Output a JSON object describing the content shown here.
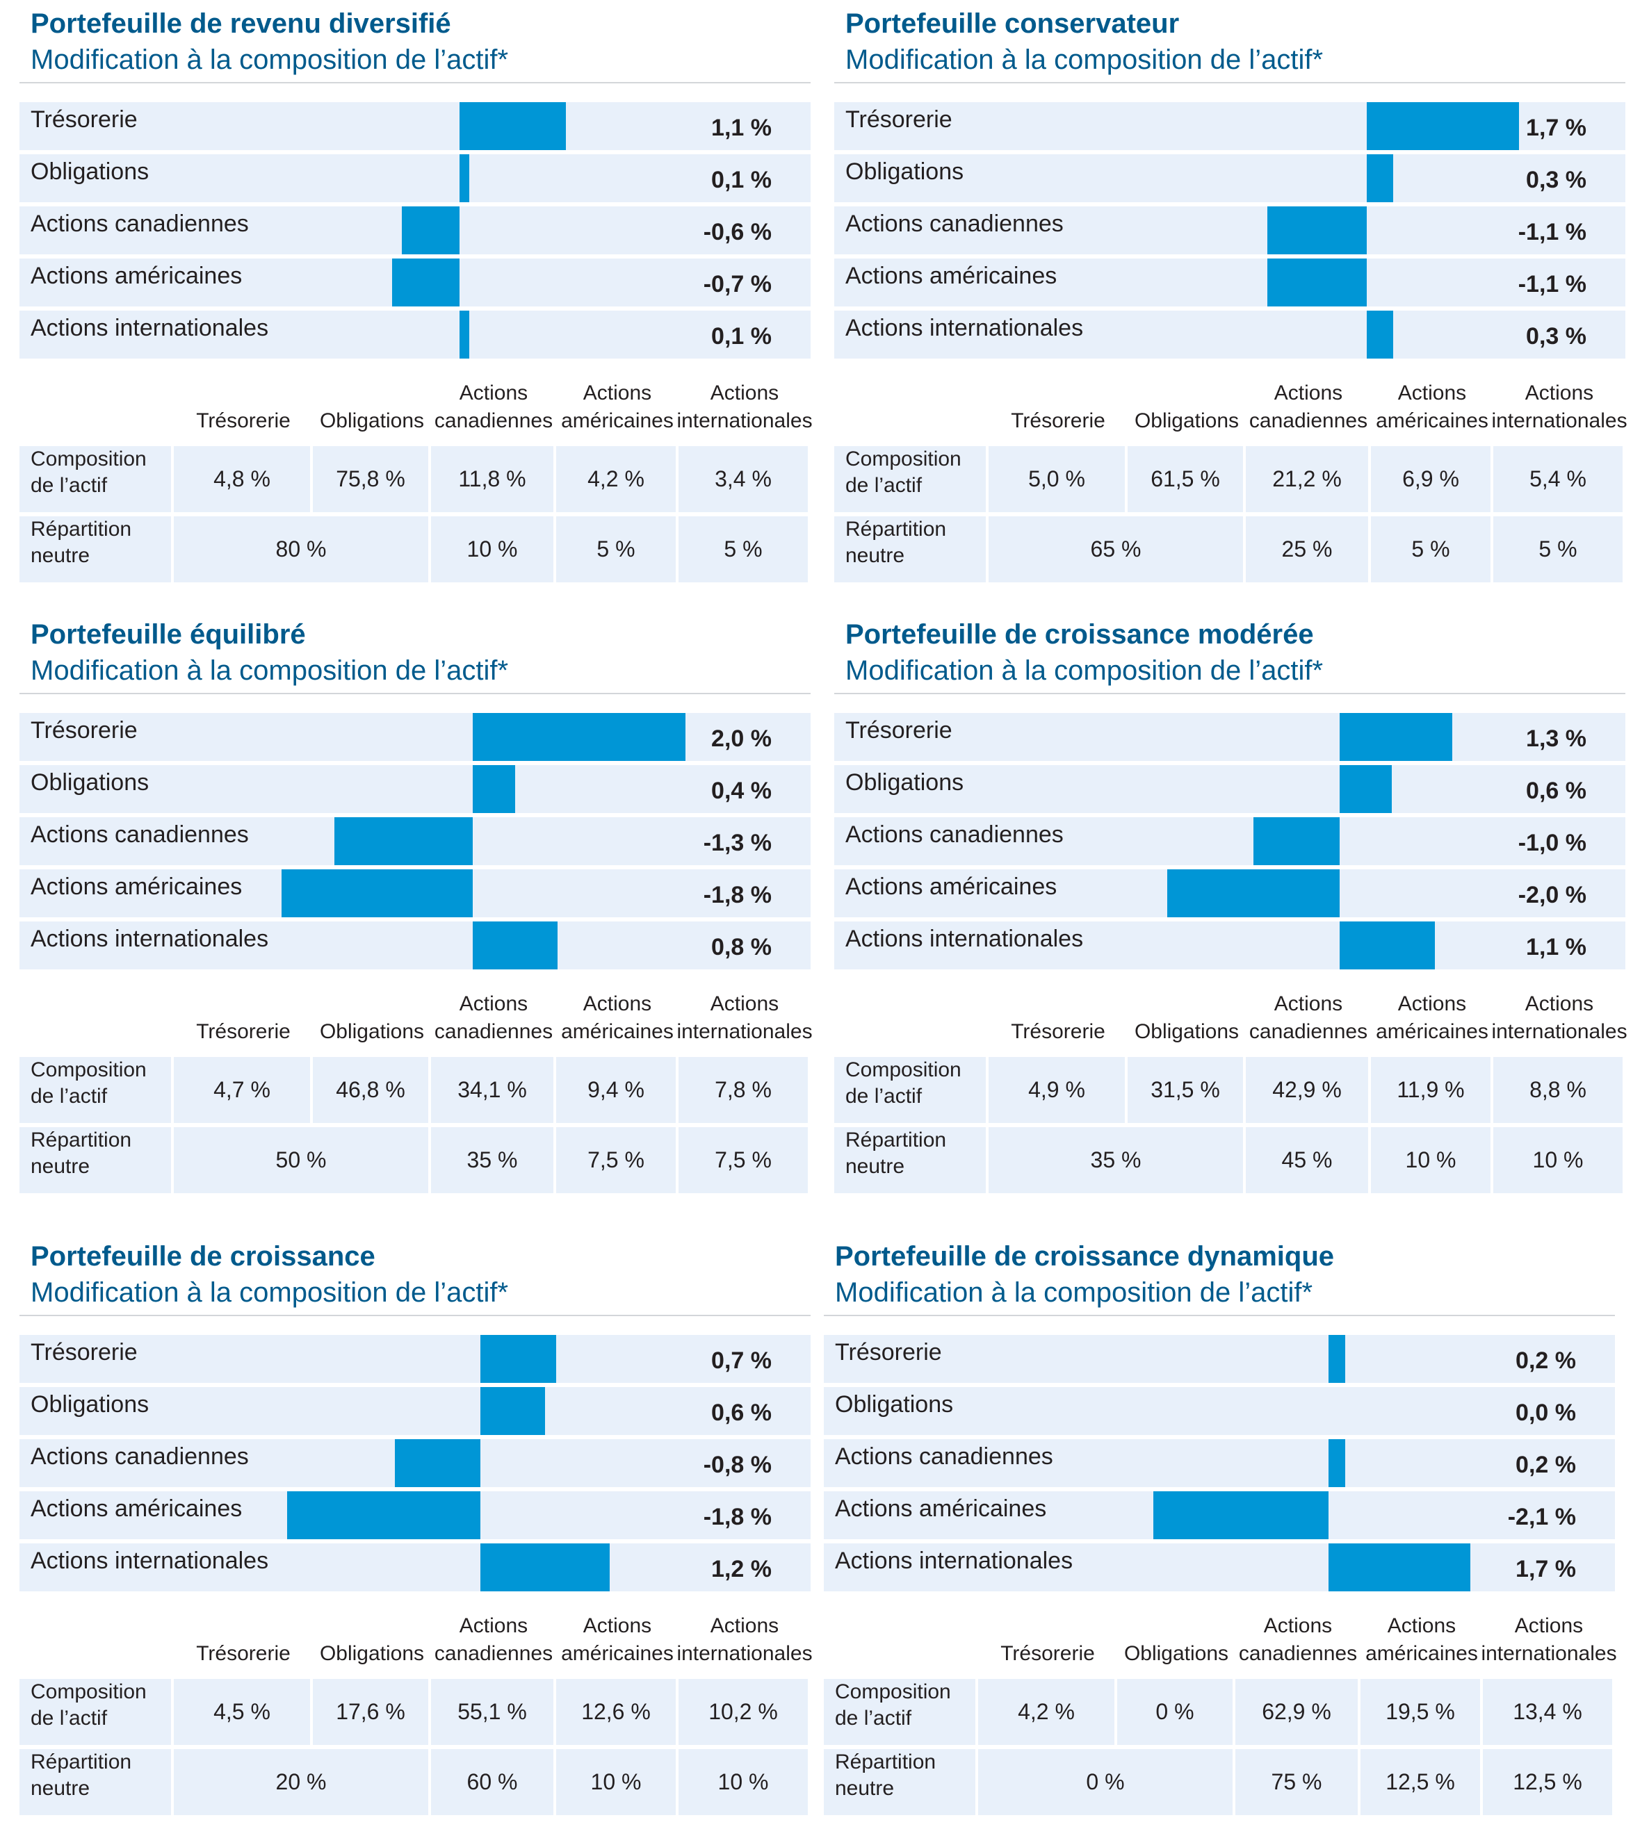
{
  "colors": {
    "title": "#005a8c",
    "bar": "#0096d6",
    "row_bg": "#e8f0fa",
    "rule": "#d3d6d9"
  },
  "value_suffix": " %",
  "table_header": [
    "Trésorerie",
    "Obligations",
    "Actions canadiennes",
    "Actions américaines",
    "Actions internationales"
  ],
  "table_header_lines": [
    [
      "Trésorerie"
    ],
    [
      "Obligations"
    ],
    [
      "Actions",
      "canadiennes"
    ],
    [
      "Actions",
      "américaines"
    ],
    [
      "Actions",
      "internationales"
    ]
  ],
  "row_labels": {
    "composition": [
      "Composition",
      "de l’actif"
    ],
    "neutral": [
      "Répartition",
      "neutre"
    ]
  },
  "chart_data": [
    {
      "type": "bar",
      "orientation": "horizontal",
      "title": "Portefeuille de revenu diversifié",
      "subtitle": "Modification à la composition de l’actif*",
      "categories": [
        "Trésorerie",
        "Obligations",
        "Actions canadiennes",
        "Actions américaines",
        "Actions internationales"
      ],
      "values": [
        1.1,
        0.1,
        -0.6,
        -0.7,
        0.1
      ],
      "value_labels": [
        "1,1 %",
        "0,1 %",
        "-0,6 %",
        "-0,7 %",
        "0,1 %"
      ],
      "bar_scale": [
        -2.4,
        3.0
      ],
      "composition": [
        "4,8 %",
        "75,8 %",
        "11,8 %",
        "4,2 %",
        "3,4 %"
      ],
      "neutral": [
        {
          "value": "80 %",
          "span": 2
        },
        {
          "value": "10 %",
          "span": 1
        },
        {
          "value": "5 %",
          "span": 1
        },
        {
          "value": "5 %",
          "span": 1
        }
      ]
    },
    {
      "type": "bar",
      "orientation": "horizontal",
      "title": "Portefeuille conservateur",
      "subtitle": "Modification à la composition de l’actif*",
      "categories": [
        "Trésorerie",
        "Obligations",
        "Actions canadiennes",
        "Actions américaines",
        "Actions internationales"
      ],
      "values": [
        1.7,
        0.3,
        -1.1,
        -1.1,
        0.3
      ],
      "value_labels": [
        "1,7 %",
        "0,3 %",
        "-1,1 %",
        "-1,1 %",
        "0,3 %"
      ],
      "bar_scale": [
        -3.6,
        2.2
      ],
      "composition": [
        "5,0 %",
        "61,5 %",
        "21,2 %",
        "6,9 %",
        "5,4 %"
      ],
      "neutral": [
        {
          "value": "65 %",
          "span": 2
        },
        {
          "value": "25 %",
          "span": 1
        },
        {
          "value": "5 %",
          "span": 1
        },
        {
          "value": "5 %",
          "span": 1
        }
      ]
    },
    {
      "type": "bar",
      "orientation": "horizontal",
      "title": "Portefeuille équilibré",
      "subtitle": "Modification à la composition de l’actif*",
      "categories": [
        "Trésorerie",
        "Obligations",
        "Actions canadiennes",
        "Actions américaines",
        "Actions internationales"
      ],
      "values": [
        2.0,
        0.4,
        -1.3,
        -1.8,
        0.8
      ],
      "value_labels": [
        "2,0 %",
        "0,4 %",
        "-1,3 %",
        "-1,8 %",
        "0,8 %"
      ],
      "bar_scale": [
        -2.3,
        2.6
      ],
      "composition": [
        "4,7 %",
        "46,8 %",
        "34,1 %",
        "9,4 %",
        "7,8 %"
      ],
      "neutral": [
        {
          "value": "50 %",
          "span": 2
        },
        {
          "value": "35 %",
          "span": 1
        },
        {
          "value": "7,5 %",
          "span": 1
        },
        {
          "value": "7,5 %",
          "span": 1
        }
      ]
    },
    {
      "type": "bar",
      "orientation": "horizontal",
      "title": "Portefeuille de croissance modérée",
      "subtitle": "Modification à la composition de l’actif*",
      "categories": [
        "Trésorerie",
        "Obligations",
        "Actions canadiennes",
        "Actions américaines",
        "Actions internationales"
      ],
      "values": [
        1.3,
        0.6,
        -1.0,
        -2.0,
        1.1
      ],
      "value_labels": [
        "1,3 %",
        "0,6 %",
        "-1,0 %",
        "-2,0 %",
        "1,1 %"
      ],
      "bar_scale": [
        -3.44,
        2.6
      ],
      "composition": [
        "4,9 %",
        "31,5 %",
        "42,9 %",
        "11,9 %",
        "8,8 %"
      ],
      "neutral": [
        {
          "value": "35 %",
          "span": 2
        },
        {
          "value": "45 %",
          "span": 1
        },
        {
          "value": "10 %",
          "span": 1
        },
        {
          "value": "10 %",
          "span": 1
        }
      ]
    },
    {
      "type": "bar",
      "orientation": "horizontal",
      "title": "Portefeuille de croissance",
      "subtitle": "Modification à la composition de l’actif*",
      "categories": [
        "Trésorerie",
        "Obligations",
        "Actions canadiennes",
        "Actions américaines",
        "Actions internationales"
      ],
      "values": [
        0.7,
        0.6,
        -0.8,
        -1.8,
        1.2
      ],
      "value_labels": [
        "0,7 %",
        "0,6 %",
        "-0,8 %",
        "-1,8 %",
        "1,2 %"
      ],
      "bar_scale": [
        -2.35,
        2.5
      ],
      "composition": [
        "4,5 %",
        "17,6 %",
        "55,1 %",
        "12,6 %",
        "10,2 %"
      ],
      "neutral": [
        {
          "value": "20 %",
          "span": 2
        },
        {
          "value": "60 %",
          "span": 1
        },
        {
          "value": "10 %",
          "span": 1
        },
        {
          "value": "10 %",
          "span": 1
        }
      ]
    },
    {
      "type": "bar",
      "orientation": "horizontal",
      "title": "Portefeuille de croissance dynamique",
      "subtitle": "Modification à la composition de l’actif*",
      "categories": [
        "Trésorerie",
        "Obligations",
        "Actions canadiennes",
        "Actions américaines",
        "Actions internationales"
      ],
      "values": [
        0.2,
        0.0,
        0.2,
        -2.1,
        1.7
      ],
      "value_labels": [
        "0,2 %",
        "0,0 %",
        "0,2 %",
        "-2,1 %",
        "1,7 %"
      ],
      "bar_scale": [
        -3.55,
        2.7
      ],
      "composition": [
        "4,2 %",
        "0 %",
        "62,9 %",
        "19,5 %",
        "13,4 %"
      ],
      "neutral": [
        {
          "value": "0 %",
          "span": 2
        },
        {
          "value": "75 %",
          "span": 1
        },
        {
          "value": "12,5 %",
          "span": 1
        },
        {
          "value": "12,5 %",
          "span": 1
        }
      ]
    }
  ]
}
